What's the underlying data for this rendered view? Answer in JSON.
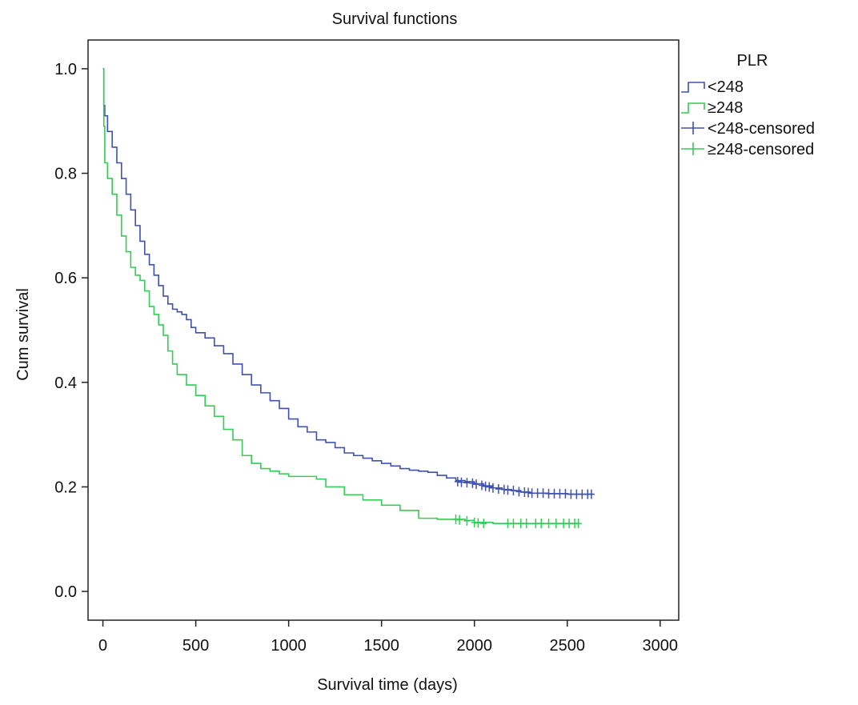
{
  "chart_data": {
    "type": "line",
    "title": "Survival functions",
    "xlabel": "Survival time (days)",
    "ylabel": "Cum survival",
    "xlim": [
      -80,
      3100
    ],
    "ylim": [
      -0.055,
      1.055
    ],
    "xticks": [
      0,
      500,
      1000,
      1500,
      2000,
      2500,
      3000
    ],
    "yticks": [
      0.0,
      0.2,
      0.4,
      0.6,
      0.8,
      1.0
    ],
    "ytick_labels": [
      "0.0",
      "0.2",
      "0.4",
      "0.6",
      "0.8",
      "1.0"
    ],
    "legend": {
      "title": "PLR",
      "placement": "right",
      "entries": [
        "<248",
        "≥248",
        "<248-censored",
        "≥248-censored"
      ]
    },
    "series": [
      {
        "name": "<248",
        "color": "#4050b0",
        "step": true,
        "x": [
          0,
          5,
          10,
          25,
          50,
          75,
          100,
          125,
          150,
          175,
          200,
          225,
          250,
          275,
          300,
          325,
          350,
          375,
          400,
          425,
          450,
          475,
          500,
          550,
          600,
          650,
          700,
          750,
          800,
          850,
          900,
          950,
          1000,
          1050,
          1100,
          1150,
          1200,
          1250,
          1300,
          1350,
          1400,
          1450,
          1500,
          1550,
          1600,
          1650,
          1700,
          1750,
          1800,
          1850,
          1900,
          1950,
          2000,
          2050,
          2100,
          2150,
          2200,
          2250,
          2300,
          2400,
          2500,
          2640
        ],
        "y": [
          1.0,
          0.93,
          0.91,
          0.88,
          0.85,
          0.82,
          0.79,
          0.76,
          0.73,
          0.7,
          0.67,
          0.645,
          0.625,
          0.605,
          0.585,
          0.565,
          0.55,
          0.54,
          0.535,
          0.53,
          0.52,
          0.505,
          0.495,
          0.485,
          0.47,
          0.455,
          0.435,
          0.415,
          0.395,
          0.38,
          0.365,
          0.35,
          0.33,
          0.315,
          0.305,
          0.29,
          0.285,
          0.275,
          0.265,
          0.26,
          0.255,
          0.25,
          0.245,
          0.24,
          0.235,
          0.232,
          0.23,
          0.228,
          0.222,
          0.217,
          0.212,
          0.21,
          0.206,
          0.202,
          0.198,
          0.195,
          0.193,
          0.19,
          0.188,
          0.187,
          0.186,
          0.186
        ],
        "censored_x": [
          1910,
          1930,
          1960,
          1990,
          2010,
          2040,
          2060,
          2080,
          2100,
          2130,
          2160,
          2180,
          2210,
          2240,
          2270,
          2290,
          2310,
          2340,
          2370,
          2400,
          2430,
          2460,
          2490,
          2520,
          2550,
          2580,
          2610,
          2630
        ],
        "censored_y": [
          0.21,
          0.209,
          0.208,
          0.207,
          0.205,
          0.203,
          0.201,
          0.2,
          0.198,
          0.196,
          0.195,
          0.194,
          0.193,
          0.191,
          0.19,
          0.189,
          0.188,
          0.188,
          0.188,
          0.187,
          0.187,
          0.187,
          0.187,
          0.186,
          0.186,
          0.186,
          0.186,
          0.186
        ]
      },
      {
        "name": "≥248",
        "color": "#33cc55",
        "step": true,
        "x": [
          0,
          5,
          10,
          25,
          50,
          75,
          100,
          125,
          150,
          175,
          200,
          225,
          250,
          275,
          300,
          325,
          350,
          375,
          400,
          450,
          500,
          550,
          600,
          650,
          700,
          750,
          800,
          850,
          900,
          950,
          1000,
          1050,
          1100,
          1150,
          1200,
          1300,
          1400,
          1500,
          1600,
          1700,
          1800,
          1900,
          1950,
          2000,
          2100,
          2200,
          2300,
          2400,
          2560
        ],
        "y": [
          1.0,
          0.89,
          0.82,
          0.79,
          0.76,
          0.72,
          0.68,
          0.65,
          0.62,
          0.605,
          0.595,
          0.575,
          0.545,
          0.53,
          0.51,
          0.49,
          0.46,
          0.435,
          0.415,
          0.395,
          0.375,
          0.355,
          0.335,
          0.31,
          0.29,
          0.26,
          0.245,
          0.235,
          0.23,
          0.225,
          0.22,
          0.22,
          0.22,
          0.215,
          0.2,
          0.185,
          0.175,
          0.165,
          0.155,
          0.14,
          0.138,
          0.138,
          0.136,
          0.132,
          0.13,
          0.13,
          0.13,
          0.13,
          0.13
        ],
        "censored_x": [
          1900,
          1920,
          1960,
          2000,
          2020,
          2050,
          2180,
          2210,
          2250,
          2280,
          2330,
          2360,
          2400,
          2440,
          2480,
          2510,
          2540,
          2560
        ],
        "censored_y": [
          0.138,
          0.137,
          0.135,
          0.132,
          0.131,
          0.13,
          0.13,
          0.13,
          0.13,
          0.13,
          0.13,
          0.13,
          0.13,
          0.13,
          0.13,
          0.13,
          0.13,
          0.13
        ]
      }
    ]
  }
}
